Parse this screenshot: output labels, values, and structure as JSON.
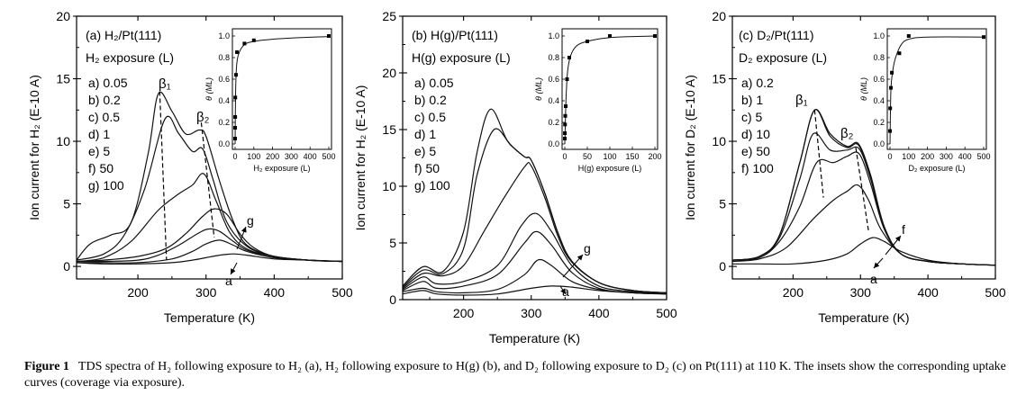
{
  "caption": {
    "label": "Figure 1",
    "text": "TDS spectra of H₂ following exposure to H₂ (a), H₂ following exposure to H(g) (b), and D₂ following exposure to D₂ (c) on Pt(111) at 110 K. The insets show the corresponding uptake curves (coverage via exposure)."
  },
  "chart_data": [
    {
      "type": "line",
      "panel_label": "(a)",
      "title": "H₂/Pt(111)",
      "legend_title": "H₂ exposure (L)",
      "xlabel": "Temperature (K)",
      "ylabel": "Ion current for H₂ (E-10 A)",
      "xlim": [
        110,
        500
      ],
      "ylim": [
        -1,
        20
      ],
      "xticks": [
        200,
        300,
        400,
        500
      ],
      "yticks": [
        0,
        5,
        10,
        15,
        20
      ],
      "peak_labels": [
        "β₁",
        "β₂"
      ],
      "arrow_labels": [
        "g",
        "a"
      ],
      "series": [
        {
          "name": "a) 0.05",
          "x": [
            110,
            150,
            200,
            250,
            280,
            300,
            320,
            340,
            360,
            400,
            450,
            500
          ],
          "y": [
            0.3,
            0.2,
            0.2,
            0.3,
            0.5,
            0.7,
            0.9,
            1.0,
            0.9,
            0.6,
            0.5,
            0.4
          ]
        },
        {
          "name": "b) 0.2",
          "x": [
            110,
            150,
            200,
            250,
            280,
            300,
            320,
            340,
            360,
            400,
            450,
            500
          ],
          "y": [
            0.3,
            0.3,
            0.3,
            0.6,
            1.2,
            1.8,
            2.1,
            1.7,
            1.2,
            0.7,
            0.5,
            0.4
          ]
        },
        {
          "name": "c) 0.5",
          "x": [
            110,
            150,
            200,
            230,
            260,
            290,
            305,
            320,
            340,
            360,
            400,
            450,
            500
          ],
          "y": [
            0.4,
            0.4,
            0.5,
            0.9,
            1.7,
            2.7,
            3.0,
            2.8,
            2.0,
            1.3,
            0.7,
            0.5,
            0.4
          ]
        },
        {
          "name": "d) 1",
          "x": [
            110,
            150,
            200,
            240,
            270,
            295,
            312,
            330,
            350,
            370,
            400,
            450,
            500
          ],
          "y": [
            0.4,
            0.5,
            0.8,
            1.4,
            2.6,
            4.0,
            4.6,
            4.2,
            2.6,
            1.5,
            0.8,
            0.5,
            0.4
          ]
        },
        {
          "name": "e) 5",
          "x": [
            110,
            150,
            190,
            230,
            260,
            280,
            297,
            315,
            335,
            360,
            400,
            450,
            500
          ],
          "y": [
            0.4,
            0.7,
            2.0,
            4.5,
            5.8,
            6.5,
            7.4,
            5.2,
            2.7,
            1.4,
            0.8,
            0.5,
            0.4
          ]
        },
        {
          "name": "f) 50",
          "x": [
            110,
            150,
            180,
            210,
            240,
            260,
            280,
            295,
            310,
            330,
            360,
            400,
            450,
            500
          ],
          "y": [
            0.5,
            1.0,
            2.5,
            6.2,
            11.8,
            10.6,
            9.2,
            9.4,
            7.0,
            3.6,
            1.6,
            0.8,
            0.5,
            0.4
          ]
        },
        {
          "name": "g) 100",
          "x": [
            110,
            130,
            160,
            190,
            215,
            230,
            250,
            270,
            290,
            300,
            320,
            340,
            360,
            400,
            450,
            500
          ],
          "y": [
            0.5,
            1.8,
            2.5,
            3.5,
            9.0,
            13.8,
            12.4,
            10.6,
            10.9,
            10.4,
            6.8,
            3.6,
            1.7,
            0.8,
            0.5,
            0.4
          ]
        }
      ],
      "inset": {
        "xlabel": "H₂ exposure (L)",
        "ylabel": "θ (ML)",
        "xlim": [
          0,
          500
        ],
        "ylim": [
          0,
          1.0
        ],
        "xticks": [
          0,
          100,
          200,
          300,
          400,
          500
        ],
        "yticks": [
          0.0,
          0.2,
          0.4,
          0.6,
          0.8,
          1.0
        ],
        "points": [
          [
            0.05,
            0.05
          ],
          [
            0.2,
            0.15
          ],
          [
            0.5,
            0.25
          ],
          [
            1,
            0.43
          ],
          [
            5,
            0.64
          ],
          [
            10,
            0.85
          ],
          [
            50,
            0.93
          ],
          [
            100,
            0.96
          ],
          [
            500,
            1.0
          ]
        ],
        "fit": [
          [
            0,
            0
          ],
          [
            3,
            0.5
          ],
          [
            8,
            0.73
          ],
          [
            20,
            0.84
          ],
          [
            50,
            0.92
          ],
          [
            100,
            0.95
          ],
          [
            200,
            0.97
          ],
          [
            350,
            0.985
          ],
          [
            500,
            0.995
          ]
        ]
      }
    },
    {
      "type": "line",
      "panel_label": "(b)",
      "title": "H(g)/Pt(111)",
      "legend_title": "H(g) exposure (L)",
      "xlabel": "Temperature (K)",
      "ylabel": "Ion current for H₂ (E-10 A)",
      "xlim": [
        110,
        500
      ],
      "ylim": [
        0,
        25
      ],
      "xticks": [
        200,
        300,
        400,
        500
      ],
      "yticks": [
        0,
        5,
        10,
        15,
        20,
        25
      ],
      "arrow_labels": [
        "g",
        "a"
      ],
      "series": [
        {
          "name": "a) 0.05",
          "x": [
            110,
            140,
            160,
            200,
            250,
            300,
            330,
            360,
            400,
            450,
            500
          ],
          "y": [
            0.5,
            0.8,
            0.5,
            0.4,
            0.5,
            1.0,
            1.2,
            1.1,
            0.8,
            0.6,
            0.5
          ]
        },
        {
          "name": "b) 0.2",
          "x": [
            110,
            140,
            160,
            200,
            250,
            290,
            310,
            330,
            360,
            400,
            450,
            500
          ],
          "y": [
            0.7,
            1.0,
            0.7,
            0.6,
            0.9,
            2.2,
            3.5,
            3.0,
            1.6,
            0.9,
            0.6,
            0.5
          ]
        },
        {
          "name": "c) 0.5",
          "x": [
            110,
            140,
            160,
            200,
            250,
            290,
            308,
            330,
            360,
            400,
            450,
            500
          ],
          "y": [
            0.8,
            1.6,
            1.0,
            1.2,
            2.2,
            5.0,
            6.0,
            4.8,
            2.4,
            1.0,
            0.6,
            0.5
          ]
        },
        {
          "name": "d) 1",
          "x": [
            110,
            140,
            160,
            200,
            250,
            285,
            307,
            330,
            360,
            400,
            450,
            500
          ],
          "y": [
            0.9,
            2.0,
            1.4,
            1.6,
            3.0,
            6.5,
            7.6,
            6.0,
            3.0,
            1.2,
            0.7,
            0.5
          ]
        },
        {
          "name": "e) 5",
          "x": [
            110,
            140,
            170,
            200,
            230,
            260,
            290,
            300,
            320,
            340,
            360,
            400,
            450,
            500
          ],
          "y": [
            1.0,
            2.3,
            2.1,
            3.0,
            6.0,
            9.0,
            11.7,
            11.8,
            9.0,
            5.5,
            3.3,
            1.5,
            0.8,
            0.6
          ]
        },
        {
          "name": "f) 50",
          "x": [
            110,
            140,
            170,
            200,
            220,
            245,
            270,
            290,
            300,
            320,
            340,
            360,
            400,
            450,
            500
          ],
          "y": [
            1.1,
            2.6,
            2.3,
            4.5,
            11.0,
            15.0,
            13.6,
            12.6,
            12.3,
            9.4,
            5.8,
            3.4,
            1.5,
            0.8,
            0.6
          ]
        },
        {
          "name": "g) 100",
          "x": [
            110,
            140,
            170,
            200,
            220,
            240,
            265,
            290,
            300,
            320,
            340,
            360,
            400,
            450,
            500
          ],
          "y": [
            1.2,
            2.9,
            2.5,
            6.0,
            13.0,
            16.8,
            14.0,
            12.6,
            12.3,
            9.4,
            5.8,
            3.4,
            1.5,
            0.8,
            0.6
          ]
        }
      ],
      "inset": {
        "xlabel": "H(g) exposure (L)",
        "ylabel": "θ (ML)",
        "xlim": [
          0,
          200
        ],
        "ylim": [
          0,
          1.0
        ],
        "xticks": [
          0,
          50,
          100,
          150,
          200
        ],
        "yticks": [
          0.0,
          0.2,
          0.4,
          0.6,
          0.8,
          1.0
        ],
        "points": [
          [
            0.05,
            0.05
          ],
          [
            0.2,
            0.1
          ],
          [
            0.5,
            0.18
          ],
          [
            1,
            0.26
          ],
          [
            2,
            0.35
          ],
          [
            5,
            0.6
          ],
          [
            10,
            0.8
          ],
          [
            50,
            0.95
          ],
          [
            100,
            1.0
          ],
          [
            200,
            1.0
          ]
        ],
        "fit": [
          [
            0,
            0
          ],
          [
            3,
            0.45
          ],
          [
            7,
            0.7
          ],
          [
            15,
            0.84
          ],
          [
            30,
            0.92
          ],
          [
            60,
            0.96
          ],
          [
            100,
            0.985
          ],
          [
            150,
            0.995
          ],
          [
            200,
            1.0
          ]
        ]
      }
    },
    {
      "type": "line",
      "panel_label": "(c)",
      "title": "D₂/Pt(111)",
      "legend_title": "D₂ exposure (L)",
      "xlabel": "Temperature (K)",
      "ylabel": "Ion current for D₂ (E-10 A)",
      "xlim": [
        110,
        500
      ],
      "ylim": [
        -1,
        20
      ],
      "xticks": [
        200,
        300,
        400,
        500
      ],
      "yticks": [
        0,
        5,
        10,
        15,
        20
      ],
      "peak_labels": [
        "β₁",
        "β₂"
      ],
      "arrow_labels": [
        "f",
        "a"
      ],
      "series": [
        {
          "name": "a) 0.2",
          "x": [
            110,
            150,
            200,
            250,
            280,
            300,
            318,
            335,
            360,
            400,
            450,
            500
          ],
          "y": [
            0.2,
            0.2,
            0.2,
            0.5,
            1.0,
            1.8,
            2.3,
            2.0,
            1.2,
            0.5,
            0.2,
            0.1
          ]
        },
        {
          "name": "b) 1",
          "x": [
            110,
            150,
            190,
            230,
            260,
            280,
            296,
            312,
            330,
            360,
            400,
            450,
            500
          ],
          "y": [
            0.4,
            0.6,
            1.5,
            3.8,
            5.3,
            6.0,
            6.5,
            5.3,
            3.0,
            1.0,
            0.4,
            0.2,
            0.1
          ]
        },
        {
          "name": "c) 5",
          "x": [
            110,
            150,
            180,
            210,
            235,
            260,
            280,
            298,
            315,
            335,
            360,
            400,
            450,
            500
          ],
          "y": [
            0.5,
            0.7,
            2.0,
            4.8,
            8.3,
            8.3,
            8.8,
            9.0,
            6.6,
            3.0,
            1.0,
            0.4,
            0.2,
            0.1
          ]
        },
        {
          "name": "d) 10",
          "x": [
            110,
            150,
            180,
            210,
            230,
            255,
            280,
            298,
            315,
            335,
            360,
            400,
            450,
            500
          ],
          "y": [
            0.5,
            0.8,
            2.3,
            7.0,
            10.6,
            9.3,
            9.3,
            9.4,
            7.0,
            3.1,
            1.0,
            0.4,
            0.2,
            0.1
          ]
        },
        {
          "name": "e) 50",
          "x": [
            110,
            150,
            180,
            210,
            232,
            255,
            280,
            297,
            315,
            335,
            360,
            400,
            450,
            500
          ],
          "y": [
            0.5,
            0.8,
            2.5,
            8.3,
            12.5,
            10.4,
            9.5,
            9.7,
            7.2,
            3.2,
            1.0,
            0.4,
            0.2,
            0.1
          ]
        },
        {
          "name": "f) 100",
          "x": [
            110,
            150,
            180,
            210,
            232,
            255,
            280,
            297,
            315,
            335,
            360,
            400,
            450,
            500
          ],
          "y": [
            0.5,
            0.8,
            2.5,
            8.3,
            12.5,
            10.6,
            9.6,
            9.8,
            7.3,
            3.2,
            1.0,
            0.4,
            0.2,
            0.1
          ]
        }
      ],
      "inset": {
        "xlabel": "D₂ exposure (L)",
        "ylabel": "θ (ML)",
        "xlim": [
          0,
          500
        ],
        "ylim": [
          0,
          1.0
        ],
        "xticks": [
          0,
          100,
          200,
          300,
          400,
          500
        ],
        "yticks": [
          0.0,
          0.2,
          0.4,
          0.6,
          0.8,
          1.0
        ],
        "points": [
          [
            0.2,
            0.12
          ],
          [
            1,
            0.33
          ],
          [
            5,
            0.52
          ],
          [
            10,
            0.66
          ],
          [
            50,
            0.84
          ],
          [
            100,
            1.0
          ],
          [
            500,
            0.99
          ]
        ],
        "fit": [
          [
            0,
            0
          ],
          [
            5,
            0.5
          ],
          [
            15,
            0.68
          ],
          [
            30,
            0.8
          ],
          [
            60,
            0.92
          ],
          [
            100,
            0.97
          ],
          [
            200,
            0.99
          ],
          [
            500,
            0.99
          ]
        ]
      }
    }
  ]
}
